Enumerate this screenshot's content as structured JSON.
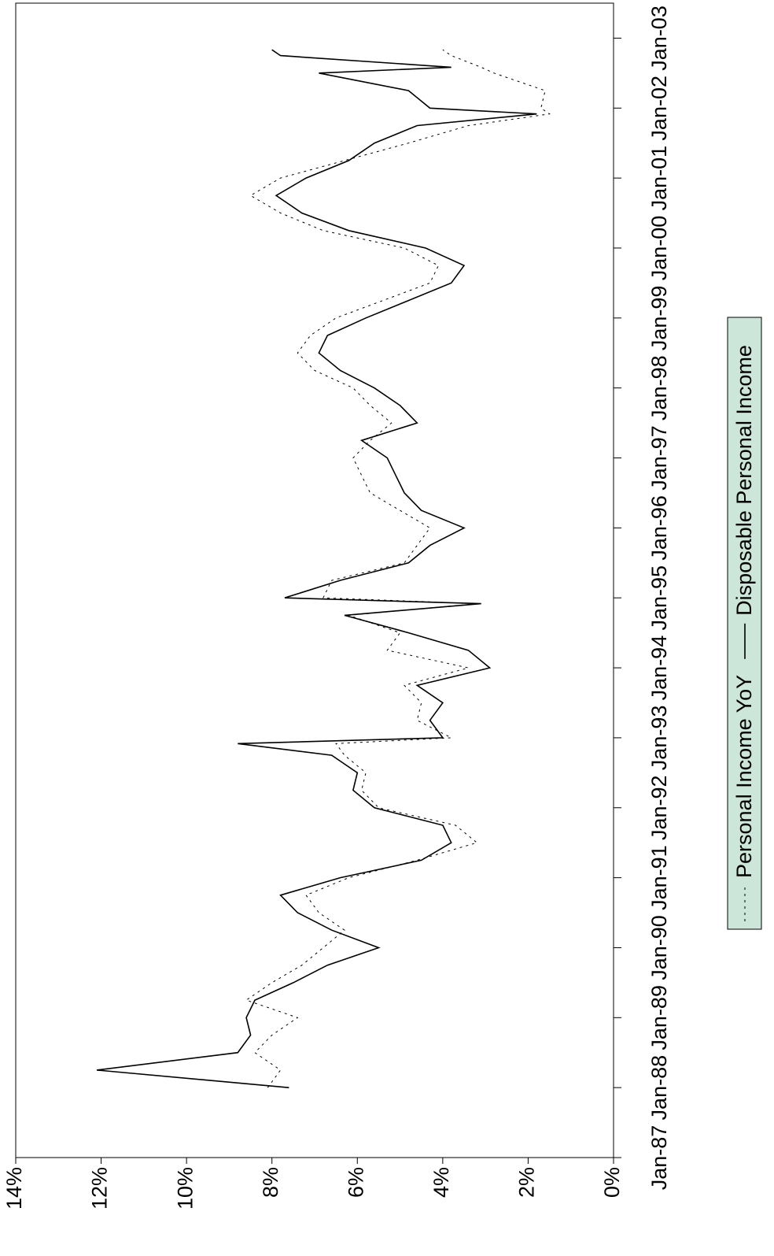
{
  "chart_data": {
    "type": "line",
    "x": [
      "1988-01",
      "1988-04",
      "1988-07",
      "1988-10",
      "1989-01",
      "1989-04",
      "1989-07",
      "1989-10",
      "1990-01",
      "1990-04",
      "1990-07",
      "1990-10",
      "1991-01",
      "1991-04",
      "1991-07",
      "1991-10",
      "1992-01",
      "1992-04",
      "1992-07",
      "1992-10",
      "1992-12",
      "1993-01",
      "1993-04",
      "1993-07",
      "1993-10",
      "1994-01",
      "1994-04",
      "1994-07",
      "1994-10",
      "1994-12",
      "1995-01",
      "1995-04",
      "1995-07",
      "1995-10",
      "1996-01",
      "1996-04",
      "1996-07",
      "1996-10",
      "1997-01",
      "1997-04",
      "1997-07",
      "1997-10",
      "1998-01",
      "1998-04",
      "1998-07",
      "1998-10",
      "1999-01",
      "1999-04",
      "1999-07",
      "1999-10",
      "2000-01",
      "2000-04",
      "2000-07",
      "2000-10",
      "2001-01",
      "2001-04",
      "2001-07",
      "2001-10",
      "2001-12",
      "2002-01",
      "2002-04",
      "2002-07",
      "2002-08",
      "2002-10",
      "2002-11"
    ],
    "series": [
      {
        "name": "Personal Income YoY",
        "color": "#000000",
        "dash": true,
        "values": [
          8.1,
          7.8,
          8.4,
          8.0,
          7.4,
          8.6,
          8.0,
          7.3,
          6.8,
          6.3,
          6.9,
          7.2,
          6.2,
          4.6,
          3.2,
          3.7,
          5.5,
          5.9,
          5.8,
          6.3,
          6.5,
          3.8,
          4.6,
          4.5,
          4.9,
          3.4,
          5.3,
          5.0,
          6.2,
          3.2,
          6.8,
          6.6,
          4.9,
          4.6,
          4.3,
          5.0,
          5.7,
          5.9,
          6.1,
          5.7,
          5.2,
          5.7,
          6.1,
          7.0,
          7.4,
          7.1,
          6.5,
          5.4,
          4.3,
          4.1,
          4.9,
          6.8,
          7.8,
          8.5,
          7.8,
          6.3,
          4.8,
          3.4,
          1.5,
          1.7,
          1.6,
          2.8,
          3.1,
          3.8,
          4.0
        ]
      },
      {
        "name": "Disposable Personal Income",
        "color": "#000000",
        "dash": false,
        "values": [
          7.6,
          12.1,
          8.8,
          8.5,
          8.6,
          8.4,
          7.5,
          6.7,
          5.5,
          6.6,
          7.4,
          7.8,
          6.4,
          4.5,
          3.8,
          4.0,
          5.6,
          6.1,
          6.0,
          6.6,
          8.8,
          4.0,
          4.3,
          4.0,
          4.6,
          2.9,
          3.4,
          4.8,
          6.3,
          3.1,
          7.7,
          6.4,
          4.8,
          4.3,
          3.5,
          4.5,
          4.9,
          5.1,
          5.3,
          5.9,
          4.6,
          5.0,
          5.6,
          6.4,
          6.9,
          6.7,
          5.8,
          4.8,
          3.8,
          3.5,
          4.4,
          6.2,
          7.3,
          7.9,
          7.2,
          6.2,
          5.6,
          4.6,
          1.8,
          4.3,
          4.8,
          6.9,
          3.8,
          7.8,
          8.0
        ]
      }
    ],
    "xlim": [
      "1987-01",
      "2003-07"
    ],
    "xticks": [
      {
        "value": "1987-01",
        "label": "Jan-87"
      },
      {
        "value": "1988-01",
        "label": "Jan-88"
      },
      {
        "value": "1989-01",
        "label": "Jan-89"
      },
      {
        "value": "1990-01",
        "label": "Jan-90"
      },
      {
        "value": "1991-01",
        "label": "Jan-91"
      },
      {
        "value": "1992-01",
        "label": "Jan-92"
      },
      {
        "value": "1993-01",
        "label": "Jan-93"
      },
      {
        "value": "1994-01",
        "label": "Jan-94"
      },
      {
        "value": "1995-01",
        "label": "Jan-95"
      },
      {
        "value": "1996-01",
        "label": "Jan-96"
      },
      {
        "value": "1997-01",
        "label": "Jan-97"
      },
      {
        "value": "1998-01",
        "label": "Jan-98"
      },
      {
        "value": "1999-01",
        "label": "Jan-99"
      },
      {
        "value": "2000-01",
        "label": "Jan-00"
      },
      {
        "value": "2001-01",
        "label": "Jan-01"
      },
      {
        "value": "2002-01",
        "label": "Jan-02"
      },
      {
        "value": "2003-01",
        "label": "Jan-03"
      }
    ],
    "ylim": [
      0,
      14
    ],
    "yticks": [
      {
        "value": 0,
        "label": "0%"
      },
      {
        "value": 2,
        "label": "2%"
      },
      {
        "value": 4,
        "label": "4%"
      },
      {
        "value": 6,
        "label": "6%"
      },
      {
        "value": 8,
        "label": "8%"
      },
      {
        "value": 10,
        "label": "10%"
      },
      {
        "value": 12,
        "label": "12%"
      },
      {
        "value": 14,
        "label": "14%"
      }
    ],
    "legend_position": "bottom",
    "legend_color": "#cce6d9"
  }
}
